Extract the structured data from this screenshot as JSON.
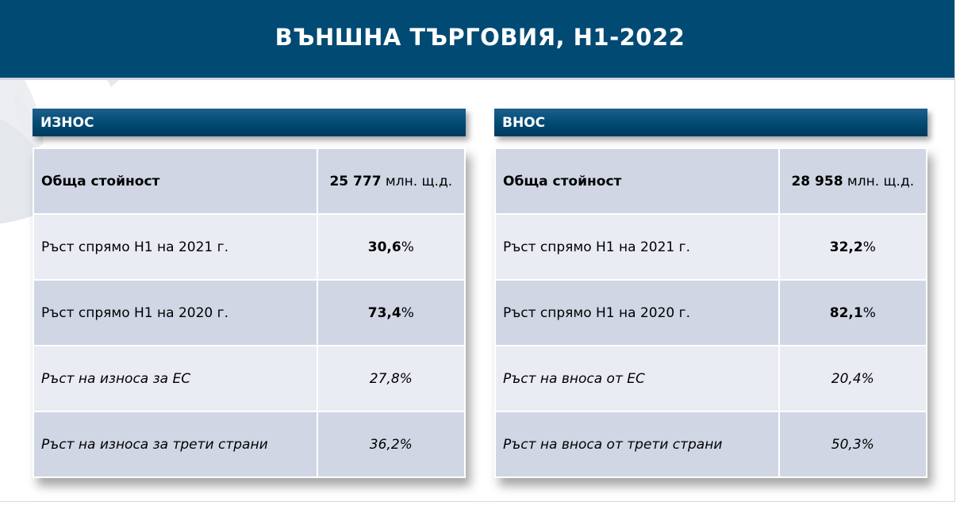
{
  "header": {
    "title": "ВЪНШНА ТЪРГОВИЯ, Н1-2022"
  },
  "exports": {
    "title": "ИЗНОС",
    "total_label": "Обща стойност",
    "total_value": "25 777",
    "total_unit": " млн. щ.д.",
    "rows": [
      {
        "label": "Ръст спрямо Н1 на 2021 г.",
        "value": "30,6",
        "suffix": "%"
      },
      {
        "label": "Ръст спрямо Н1 на 2020 г.",
        "value": "73,4",
        "suffix": "%"
      },
      {
        "label": "Ръст на износа за ЕС",
        "value": "27,8%"
      },
      {
        "label": "Ръст на износа за трети страни",
        "value": "36,2%"
      }
    ]
  },
  "imports": {
    "title": "ВНОС",
    "total_label": "Обща стойност",
    "total_value": "28 958",
    "total_unit": " млн. щ.д.",
    "rows": [
      {
        "label": "Ръст спрямо Н1 на 2021 г.",
        "value": "32,2",
        "suffix": "%"
      },
      {
        "label": "Ръст спрямо Н1 на 2020 г.",
        "value": "82,1",
        "suffix": "%"
      },
      {
        "label": "Ръст на вноса от ЕС",
        "value": "20,4%"
      },
      {
        "label": "Ръст на вноса от трети страни",
        "value": "50,3%"
      }
    ]
  }
}
